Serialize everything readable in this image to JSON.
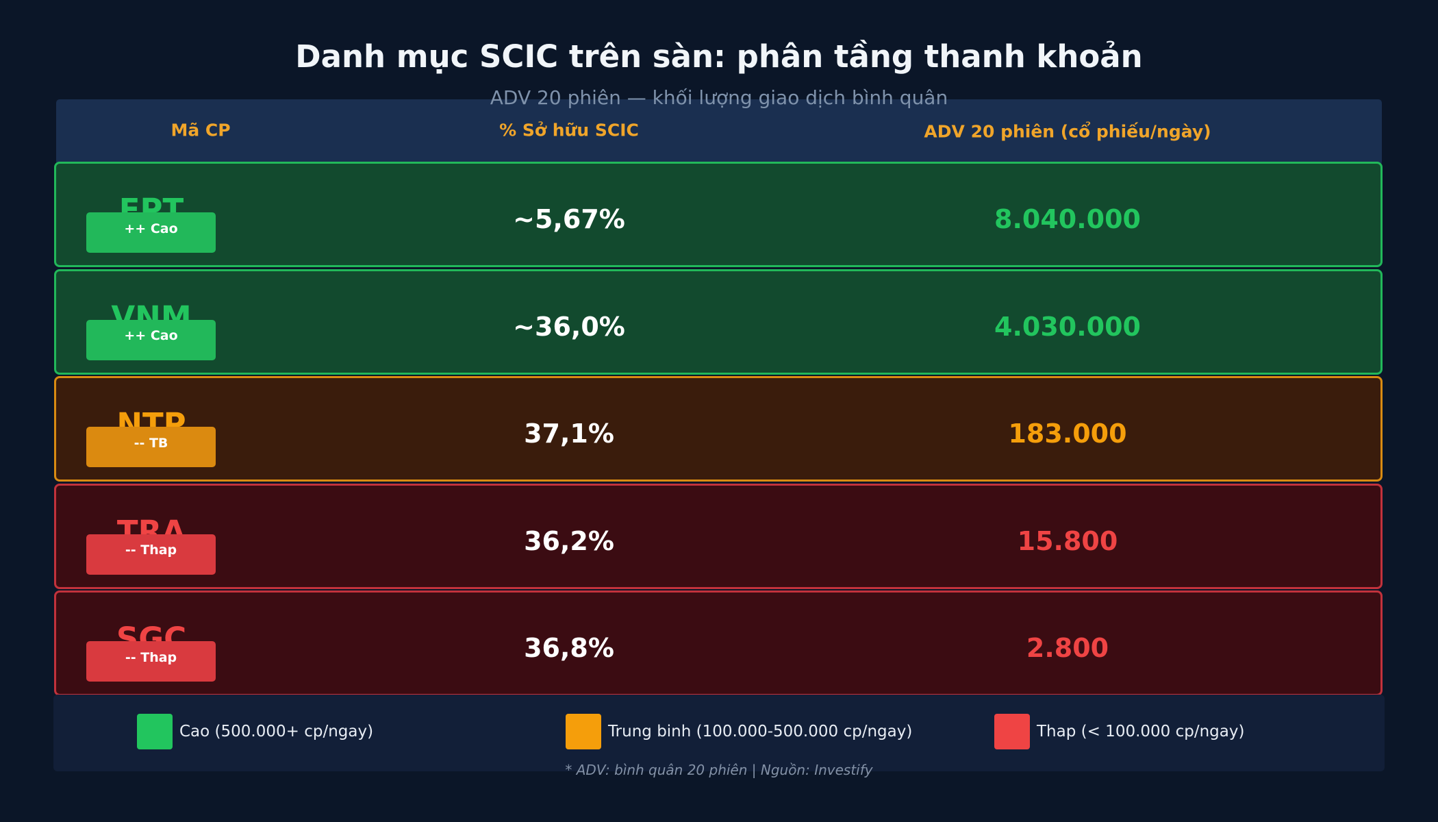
{
  "chart_data": {
    "type": "table",
    "title": "Danh mục SCIC trên sàn: phân tầng thanh khoản",
    "subtitle": "ADV 20 phiên — khối lượng giao dịch bình quân",
    "columns": [
      "Mã CP",
      "% Sở hữu SCIC",
      "ADV 20 phiên (cổ phiếu/ngày)"
    ],
    "rows": [
      {
        "ticker": "FPT",
        "ownership": "~5,67%",
        "adv": "8.040.000",
        "adv_value": 8040000,
        "tier": "cao",
        "badge": "++ Cao"
      },
      {
        "ticker": "VNM",
        "ownership": "~36,0%",
        "adv": "4.030.000",
        "adv_value": 4030000,
        "tier": "cao",
        "badge": "++ Cao"
      },
      {
        "ticker": "NTP",
        "ownership": "37,1%",
        "adv": "183.000",
        "adv_value": 183000,
        "tier": "tb",
        "badge": "-- TB"
      },
      {
        "ticker": "TRA",
        "ownership": "36,2%",
        "adv": "15.800",
        "adv_value": 15800,
        "tier": "thap",
        "badge": "-- Thap"
      },
      {
        "ticker": "SGC",
        "ownership": "36,8%",
        "adv": "2.800",
        "adv_value": 2800,
        "tier": "thap",
        "badge": "-- Thap"
      }
    ],
    "legend": [
      {
        "label": "Cao (500.000+ cp/ngay)",
        "color": "#22c55e"
      },
      {
        "label": "Trung binh (100.000-500.000 cp/ngay)",
        "color": "#f59e0b"
      },
      {
        "label": "Thap (< 100.000 cp/ngay)",
        "color": "#ef4444"
      }
    ],
    "footnote": "* ADV: bình quân 20 phiên  |  Nguồn: Investify"
  },
  "colors": {
    "cao": "#22c55e",
    "tb": "#f59e0b",
    "thap": "#ef4444",
    "badge_cao": "#22b85a",
    "badge_tb": "#db8a10",
    "badge_thap": "#d93a3f",
    "header_text": "#f0a52a"
  }
}
